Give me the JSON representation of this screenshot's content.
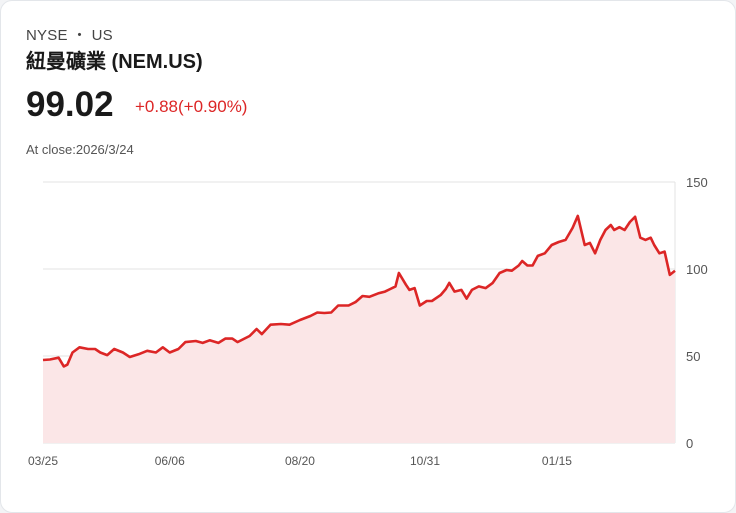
{
  "header": {
    "exchange": "NYSE",
    "separator": "・",
    "market": "US",
    "title": "紐曼礦業 (NEM.US)",
    "price": "99.02",
    "change": "+0.88(+0.90%)",
    "close_label": "At close:2026/3/24"
  },
  "colors": {
    "line": "#dc2626",
    "fill": "#fbe6e7",
    "grid": "#e3e3e3"
  },
  "chart_data": {
    "type": "area",
    "title": "",
    "xlabel": "",
    "ylabel": "",
    "x_unit": "days since 03/25",
    "xlim": [
      0,
      364
    ],
    "ylim": [
      0,
      150
    ],
    "grid": true,
    "y_ticks": [
      0,
      50,
      100,
      150
    ],
    "x_ticks": [
      {
        "day": 0,
        "label": "03/25"
      },
      {
        "day": 73,
        "label": "06/06"
      },
      {
        "day": 148,
        "label": "08/20"
      },
      {
        "day": 220,
        "label": "10/31"
      },
      {
        "day": 296,
        "label": "01/15"
      }
    ],
    "series": [
      {
        "name": "NEM.US",
        "x": [
          0,
          4,
          9,
          12,
          14,
          17,
          21,
          26,
          30,
          33,
          37,
          41,
          46,
          50,
          55,
          60,
          65,
          69,
          73,
          78,
          82,
          88,
          92,
          96,
          101,
          105,
          109,
          112,
          116,
          119,
          123,
          126,
          131,
          137,
          142,
          148,
          154,
          158,
          162,
          166,
          170,
          176,
          180,
          184,
          188,
          193,
          197,
          200,
          203,
          205,
          209,
          211,
          214,
          217,
          221,
          224,
          229,
          232,
          234,
          237,
          241,
          244,
          247,
          251,
          255,
          259,
          263,
          267,
          270,
          274,
          276,
          279,
          282,
          285,
          289,
          293,
          297,
          301,
          305,
          308,
          312,
          315,
          318,
          321,
          324,
          327,
          329,
          332,
          335,
          338,
          341,
          344,
          347,
          350,
          352,
          355,
          358,
          361,
          364
        ],
        "values": [
          47.7,
          48,
          49,
          44,
          45,
          52,
          55,
          54,
          54,
          52,
          50.5,
          54,
          52,
          49.4,
          51,
          53,
          52,
          55,
          52,
          54,
          58,
          58.6,
          57.5,
          59,
          57.5,
          60,
          60,
          58,
          60,
          61.5,
          65.5,
          62.6,
          68,
          68.4,
          68,
          70.7,
          73,
          75,
          74.7,
          75,
          79,
          79,
          81,
          84.5,
          84,
          86,
          87,
          88.5,
          90,
          97.7,
          91,
          88,
          89,
          79,
          81.6,
          81.6,
          85,
          88.5,
          92,
          87,
          88,
          83,
          88,
          90,
          89,
          92,
          97.7,
          99.4,
          99,
          102,
          104.6,
          102,
          102,
          107.5,
          109,
          113.8,
          115.5,
          116.7,
          123.6,
          130.5,
          113.8,
          115,
          109,
          116.7,
          122.4,
          125.3,
          122.4,
          124,
          122.4,
          127,
          130,
          118,
          116.7,
          118,
          113.8,
          109,
          110,
          96.6,
          99.02
        ]
      }
    ]
  }
}
